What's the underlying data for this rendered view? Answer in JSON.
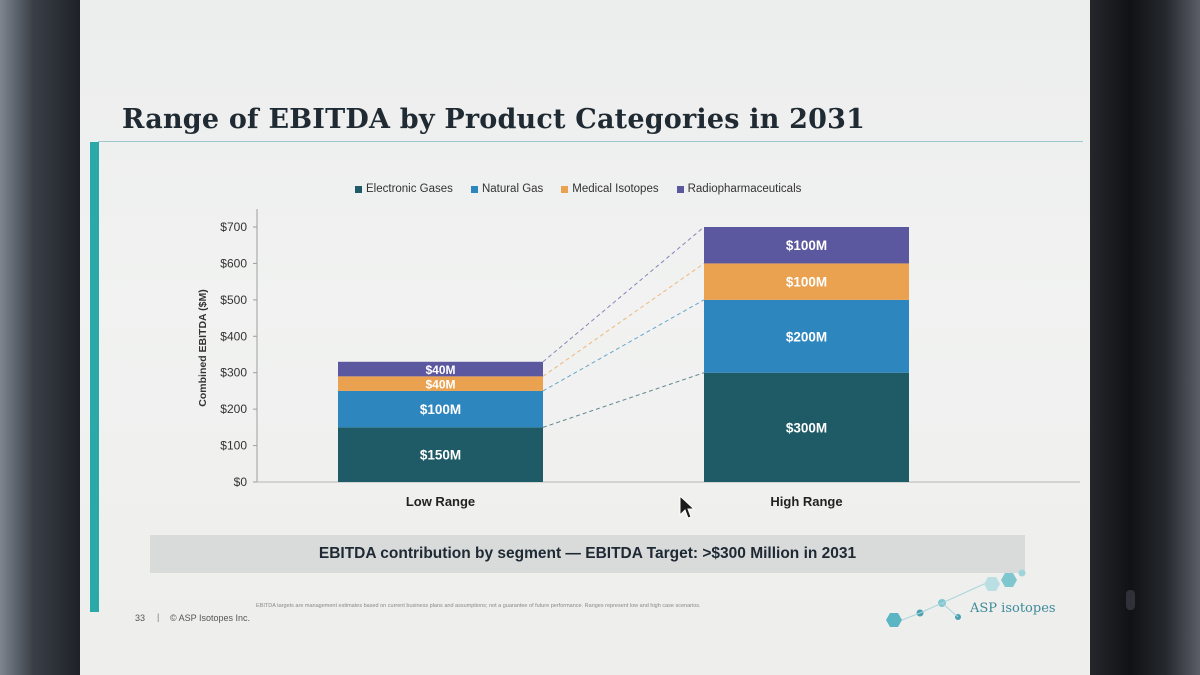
{
  "slide": {
    "title": "Range of EBITDA by Product Categories in 2031",
    "banner": "EBITDA contribution by segment — EBITDA Target: >$300 Million in 2031",
    "page_number": "33",
    "separator": "|",
    "copyright": "© ASP Isotopes Inc.",
    "disclaimer": "EBITDA targets are management estimates based on current business plans and assumptions; not a guarantee of future performance. Ranges represent low and high case scenarios.",
    "logo_text": "ASP isotopes"
  },
  "colors": {
    "electronic_gases": "#1e5b66",
    "natural_gas": "#2e86bf",
    "medical_isotopes": "#eaa150",
    "radiopharmaceuticals": "#5c58a0",
    "accent": "#2aa9a8"
  },
  "chart_data": {
    "type": "bar",
    "stacked": true,
    "categories": [
      "Low Range",
      "High Range"
    ],
    "series": [
      {
        "name": "Electronic Gases",
        "values": [
          150,
          300
        ],
        "labels": [
          "$150M",
          "$300M"
        ]
      },
      {
        "name": "Natural Gas",
        "values": [
          100,
          200
        ],
        "labels": [
          "$100M",
          "$200M"
        ]
      },
      {
        "name": "Medical Isotopes",
        "values": [
          40,
          100
        ],
        "labels": [
          "$40M",
          "$100M"
        ]
      },
      {
        "name": "Radiopharmaceuticals",
        "values": [
          40,
          100
        ],
        "labels": [
          "$40M",
          "$100M"
        ]
      }
    ],
    "ylabel": "Combined EBITDA ($M)",
    "ylim": [
      0,
      700
    ],
    "yticks": [
      "$0",
      "$100",
      "$200",
      "$300",
      "$400",
      "$500",
      "$600",
      "$700"
    ],
    "legend_position": "top-center",
    "connector_lines": true
  }
}
